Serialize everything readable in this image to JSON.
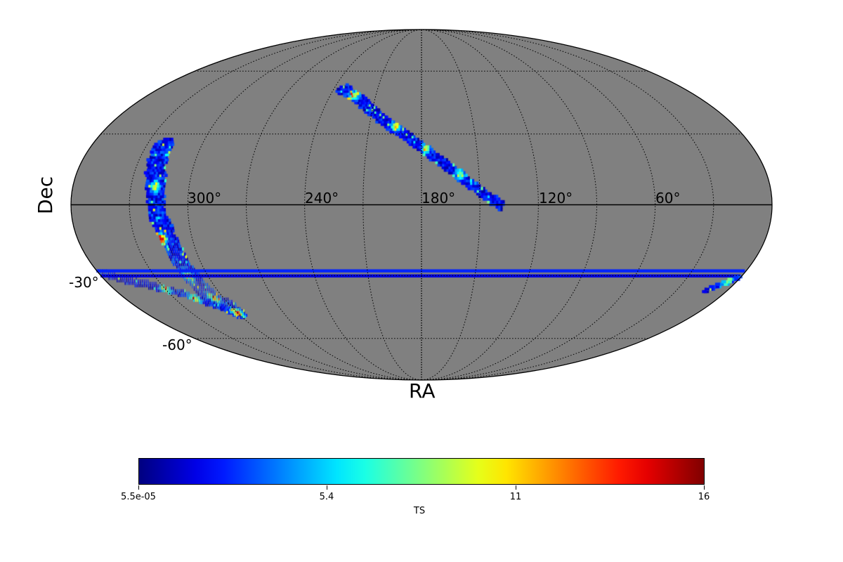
{
  "chart_data": {
    "type": "heatmap",
    "projection": "mollweide",
    "title": "",
    "xlabel": "RA",
    "ylabel": "Dec",
    "ra_ticks": [
      {
        "value": 300,
        "label": "300°"
      },
      {
        "value": 240,
        "label": "240°"
      },
      {
        "value": 180,
        "label": "180°"
      },
      {
        "value": 120,
        "label": "120°"
      },
      {
        "value": 60,
        "label": "60°"
      }
    ],
    "dec_ticks": [
      {
        "value": -30,
        "label": "-30°"
      },
      {
        "value": -60,
        "label": "-60°"
      }
    ],
    "graticule": {
      "ra_step_deg": 30,
      "dec_step_deg": 30,
      "style": "dotted"
    },
    "background_color": "#808080",
    "colormap": "jet",
    "colorbar": {
      "label": "TS",
      "min": 5.5e-05,
      "max": 16,
      "ticks": [
        {
          "value": 5.5e-05,
          "label": "5.5e-05"
        },
        {
          "value": 5.4,
          "label": "5.4"
        },
        {
          "value": 11,
          "label": "11"
        },
        {
          "value": 16,
          "label": "16"
        }
      ]
    },
    "regions": [
      {
        "name": "",
        "path": [
          {
            "ra": 234,
            "dec": 51
          },
          {
            "ra": 218,
            "dec": 45
          },
          {
            "ra": 204,
            "dec": 37
          },
          {
            "ra": 190,
            "dec": 30
          },
          {
            "ra": 176,
            "dec": 22
          },
          {
            "ra": 166,
            "dec": 16
          },
          {
            "ra": 158,
            "dec": 11
          },
          {
            "ra": 150,
            "dec": 6
          },
          {
            "ra": 145,
            "dec": 3
          },
          {
            "ra": 140,
            "dec": 0
          }
        ],
        "half_width_deg": 2.2,
        "typical_ts": 2.5,
        "peak_ts": 9,
        "hotspots": [
          {
            "ra": 225,
            "dec": 48,
            "ts": 8.5
          },
          {
            "ra": 195,
            "dec": 34,
            "ts": 9.0
          },
          {
            "ra": 178,
            "dec": 24,
            "ts": 7.0
          },
          {
            "ra": 160,
            "dec": 13,
            "ts": 8.0
          }
        ]
      },
      {
        "name": "",
        "path": [
          {
            "ra": 321,
            "dec": 24
          },
          {
            "ra": 320,
            "dec": 17
          },
          {
            "ra": 318,
            "dec": 10
          },
          {
            "ra": 317,
            "dec": 3
          },
          {
            "ra": 316,
            "dec": -3
          },
          {
            "ra": 314,
            "dec": -9
          },
          {
            "ra": 312,
            "dec": -16
          },
          {
            "ra": 311,
            "dec": -23
          },
          {
            "ra": 309,
            "dec": -30
          },
          {
            "ra": 308,
            "dec": -36
          },
          {
            "ra": 306,
            "dec": -41
          },
          {
            "ra": 301,
            "dec": -45
          }
        ],
        "half_width_deg": 4.5,
        "typical_ts": 3.0,
        "peak_ts": 13,
        "hotspots": [
          {
            "ra": 316,
            "dec": -14,
            "ts": 13.0
          },
          {
            "ra": 311,
            "dec": -30,
            "ts": 9.0
          },
          {
            "ra": 318,
            "dec": 8,
            "ts": 8.0
          },
          {
            "ra": 306,
            "dec": -40,
            "ts": 9.5
          }
        ]
      },
      {
        "name": "",
        "path": [
          {
            "ra": 298,
            "dec": -47
          },
          {
            "ra": 310,
            "dec": -43
          },
          {
            "ra": 322,
            "dec": -38
          },
          {
            "ra": 338,
            "dec": -34
          },
          {
            "ra": 352,
            "dec": -31
          },
          {
            "ra": 358,
            "dec": -29
          }
        ],
        "half_width_deg": 2.0,
        "typical_ts": 2.5,
        "peak_ts": 13,
        "hotspots": [
          {
            "ra": 300,
            "dec": -47,
            "ts": 12.5
          },
          {
            "ra": 318,
            "dec": -40,
            "ts": 9.0
          },
          {
            "ra": 330,
            "dec": -36,
            "ts": 7.5
          }
        ]
      },
      {
        "name": "",
        "path": [
          {
            "ra": 12,
            "dec": -36
          },
          {
            "ra": 6,
            "dec": -33
          },
          {
            "ra": 2,
            "dec": -31
          }
        ],
        "half_width_deg": 1.3,
        "typical_ts": 3.0,
        "peak_ts": 6,
        "hotspots": [
          {
            "ra": 6,
            "dec": -33,
            "ts": 6.0
          }
        ]
      }
    ]
  }
}
